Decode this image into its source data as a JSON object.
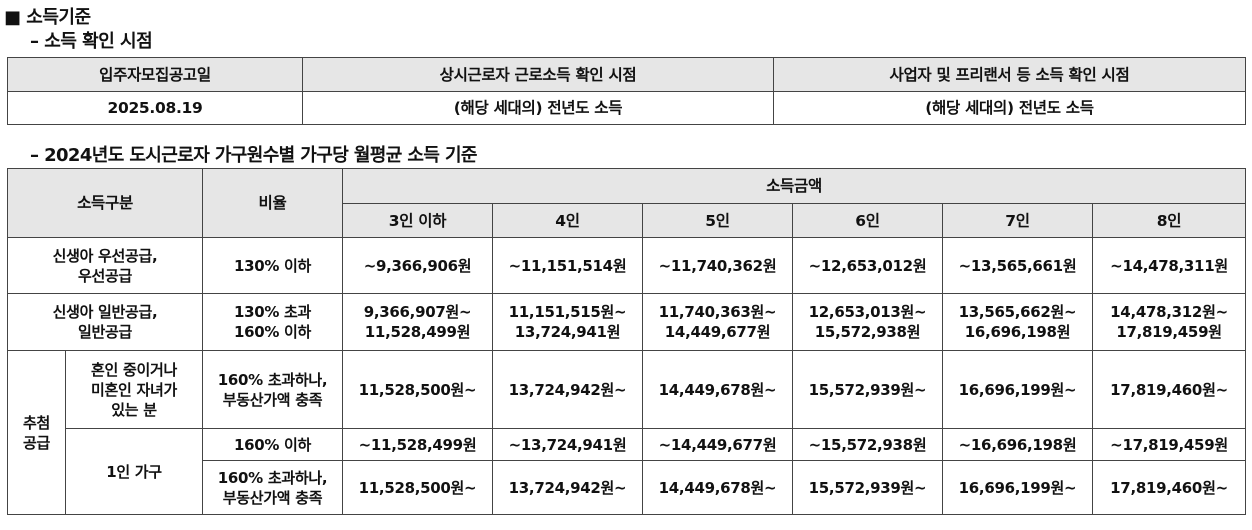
{
  "section_title": "■ 소득기준",
  "subtitle1": "– 소득 확인 시점",
  "table1": {
    "headers": [
      "입주자모집공고일",
      "상시근로자 근로소득 확인 시점",
      "사업자 및 프리랜서 등 소득 확인 시점"
    ],
    "row": [
      "2025.08.19",
      "(해당 세대의) 전년도 소득",
      "(해당 세대의) 전년도 소득"
    ]
  },
  "subtitle2": "– 2024년도 도시근로자 가구원수별 가구당 월평균 소득 기준",
  "table2": {
    "header_category": "소득구분",
    "header_ratio": "비율",
    "header_amount": "소득금액",
    "sizes": [
      "3인 이하",
      "4인",
      "5인",
      "6인",
      "7인",
      "8인"
    ],
    "row1": {
      "category_line1": "신생아 우선공급,",
      "category_line2": "우선공급",
      "ratio": "130% 이하",
      "values": [
        "~9,366,906원",
        "~11,151,514원",
        "~11,740,362원",
        "~12,653,012원",
        "~13,565,661원",
        "~14,478,311원"
      ]
    },
    "row2": {
      "category_line1": "신생아 일반공급,",
      "category_line2": "일반공급",
      "ratio_line1": "130% 초과",
      "ratio_line2": "160% 이하",
      "values_line1": [
        "9,366,907원~",
        "11,151,515원~",
        "11,740,363원~",
        "12,653,013원~",
        "13,565,662원~",
        "14,478,312원~"
      ],
      "values_line2": [
        "11,528,499원",
        "13,724,941원",
        "14,449,677원",
        "15,572,938원",
        "16,696,198원",
        "17,819,459원"
      ]
    },
    "lottery": {
      "label_line1": "추첨",
      "label_line2": "공급",
      "group1": {
        "label_line1": "혼인 중이거나",
        "label_line2": "미혼인 자녀가",
        "label_line3": "있는 분",
        "ratio_line1": "160% 초과하나,",
        "ratio_line2": "부동산가액 충족",
        "values": [
          "11,528,500원~",
          "13,724,942원~",
          "14,449,678원~",
          "15,572,939원~",
          "16,696,199원~",
          "17,819,460원~"
        ]
      },
      "group2": {
        "label": "1인 가구",
        "row_a": {
          "ratio": "160% 이하",
          "values": [
            "~11,528,499원",
            "~13,724,941원",
            "~14,449,677원",
            "~15,572,938원",
            "~16,696,198원",
            "~17,819,459원"
          ]
        },
        "row_b": {
          "ratio_line1": "160% 초과하나,",
          "ratio_line2": "부동산가액 충족",
          "values": [
            "11,528,500원~",
            "13,724,942원~",
            "14,449,678원~",
            "15,572,939원~",
            "16,696,199원~",
            "17,819,460원~"
          ]
        }
      }
    }
  }
}
